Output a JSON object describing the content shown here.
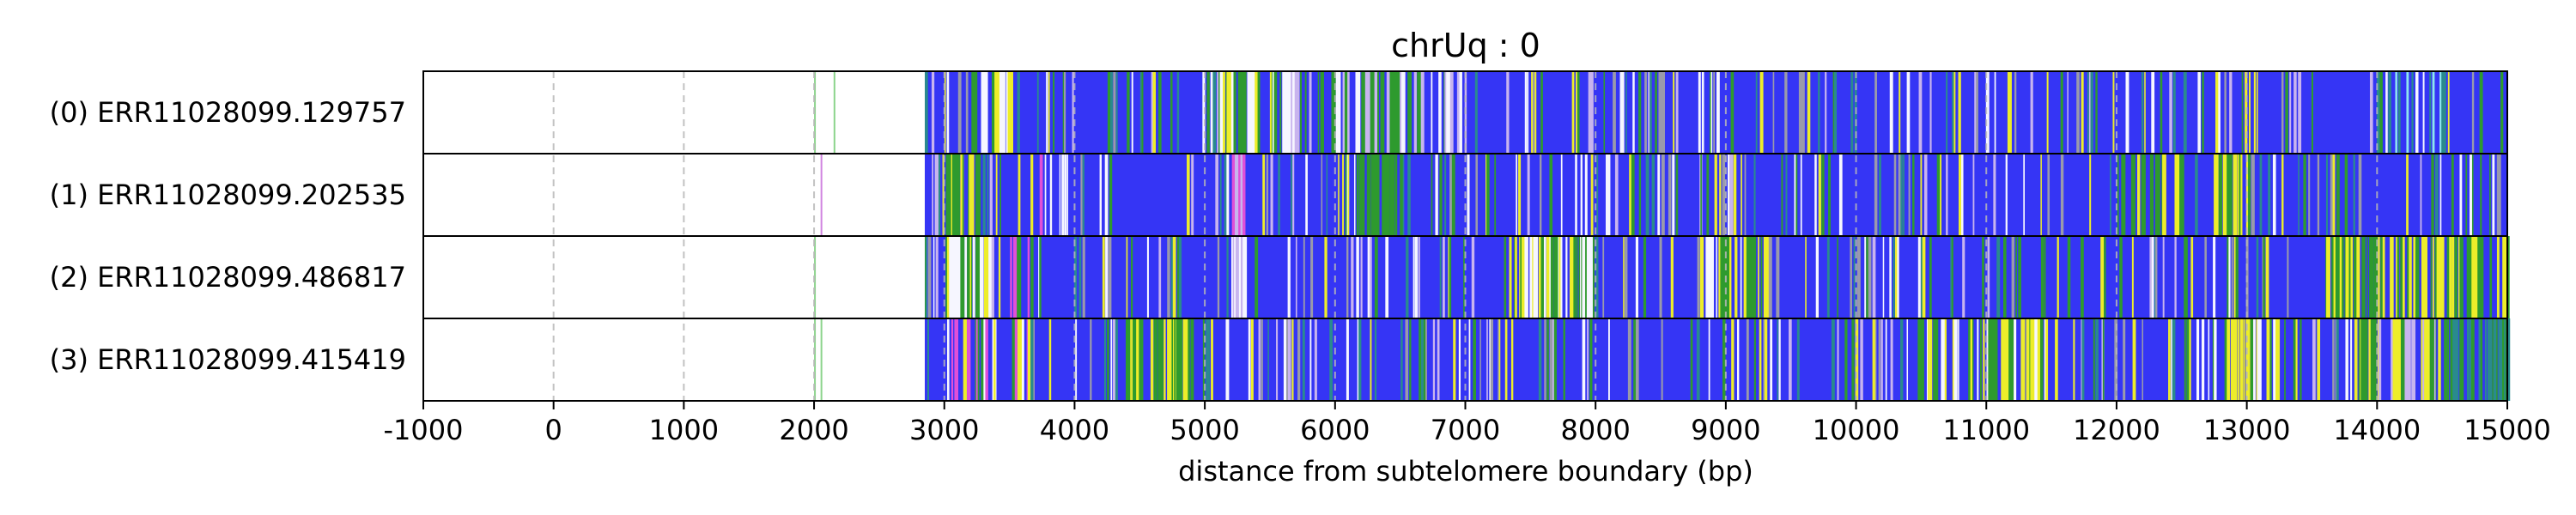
{
  "chart_data": {
    "type": "heatmap",
    "title": "chrUq : 0",
    "xlabel": "distance from subtelomere boundary (bp)",
    "ylabel": "",
    "xlim": [
      -1000,
      15000
    ],
    "x_ticks": [
      "-1000",
      "0",
      "1000",
      "2000",
      "3000",
      "4000",
      "5000",
      "6000",
      "7000",
      "8000",
      "9000",
      "10000",
      "11000",
      "12000",
      "13000",
      "14000",
      "15000"
    ],
    "x_tick_values": [
      -1000,
      0,
      1000,
      2000,
      3000,
      4000,
      5000,
      6000,
      7000,
      8000,
      9000,
      10000,
      11000,
      12000,
      13000,
      14000,
      15000
    ],
    "grid": "vertical dashed lines at each 1000 bp tick",
    "colors": {
      "background": "#3535f5",
      "green": "#2e9a2e",
      "yellow": "#eded2a",
      "white": "#f6f6ff",
      "lavender": "#c8b4ee",
      "magenta": "#e050d8",
      "cyan": "#8ee6ee",
      "teal": "#2a8a8e",
      "gray": "#9a9aaa",
      "light_green_line": "#7fcf7f",
      "violet_line": "#cc77dd"
    },
    "reads": [
      {
        "label": "(0) ERR11028099.129757",
        "start": 2850,
        "end": 15000,
        "outliers": [
          [
            2000,
            "light_green_line"
          ],
          [
            2150,
            "light_green_line"
          ]
        ],
        "bands": [
          {
            "from": 3200,
            "to": 3500,
            "density": 0.7,
            "palette": [
              "yellow",
              "green",
              "white"
            ]
          },
          {
            "from": 5100,
            "to": 5600,
            "density": 0.6,
            "palette": [
              "green",
              "white",
              "yellow"
            ]
          },
          {
            "from": 5600,
            "to": 7000,
            "density": 0.55,
            "palette": [
              "white",
              "lavender",
              "green"
            ]
          },
          {
            "from": 14100,
            "to": 14500,
            "density": 0.45,
            "palette": [
              "cyan",
              "white",
              "teal"
            ]
          }
        ]
      },
      {
        "label": "(1) ERR11028099.202535",
        "start": 2850,
        "end": 15000,
        "outliers": [
          [
            2050,
            "violet_line"
          ]
        ],
        "bands": [
          {
            "from": 3000,
            "to": 3250,
            "density": 0.8,
            "palette": [
              "yellow",
              "green"
            ]
          },
          {
            "from": 3700,
            "to": 4000,
            "density": 0.4,
            "palette": [
              "magenta",
              "green",
              "white"
            ]
          },
          {
            "from": 5200,
            "to": 5300,
            "density": 0.9,
            "palette": [
              "lavender",
              "magenta"
            ]
          },
          {
            "from": 6150,
            "to": 6500,
            "density": 0.7,
            "palette": [
              "green"
            ]
          },
          {
            "from": 12000,
            "to": 12500,
            "density": 0.55,
            "palette": [
              "green",
              "yellow"
            ]
          },
          {
            "from": 12700,
            "to": 13000,
            "density": 0.6,
            "palette": [
              "green",
              "yellow"
            ]
          },
          {
            "from": 14500,
            "to": 14900,
            "density": 0.4,
            "palette": [
              "green",
              "white"
            ]
          }
        ]
      },
      {
        "label": "(2) ERR11028099.486817",
        "start": 2850,
        "end": 15000,
        "outliers": [
          [
            2000,
            "light_green_line"
          ]
        ],
        "bands": [
          {
            "from": 3000,
            "to": 3350,
            "density": 0.85,
            "palette": [
              "yellow",
              "white",
              "green"
            ]
          },
          {
            "from": 3500,
            "to": 3700,
            "density": 0.5,
            "palette": [
              "magenta",
              "green"
            ]
          },
          {
            "from": 5200,
            "to": 5300,
            "density": 0.9,
            "palette": [
              "white",
              "lavender"
            ]
          },
          {
            "from": 7400,
            "to": 8000,
            "density": 0.75,
            "palette": [
              "green",
              "yellow",
              "white"
            ]
          },
          {
            "from": 8800,
            "to": 9300,
            "density": 0.75,
            "palette": [
              "yellow",
              "green",
              "white"
            ]
          },
          {
            "from": 13600,
            "to": 15000,
            "density": 0.7,
            "palette": [
              "green",
              "yellow"
            ]
          }
        ]
      },
      {
        "label": "(3) ERR11028099.415419",
        "start": 2850,
        "end": 15000,
        "outliers": [
          [
            2000,
            "light_green_line"
          ],
          [
            2050,
            "light_green_line"
          ]
        ],
        "bands": [
          {
            "from": 3000,
            "to": 3650,
            "density": 0.6,
            "palette": [
              "yellow",
              "white",
              "magenta",
              "green"
            ]
          },
          {
            "from": 4400,
            "to": 5000,
            "density": 0.65,
            "palette": [
              "green",
              "yellow"
            ]
          },
          {
            "from": 10500,
            "to": 11500,
            "density": 0.55,
            "palette": [
              "green",
              "yellow",
              "white"
            ]
          },
          {
            "from": 12500,
            "to": 13500,
            "density": 0.5,
            "palette": [
              "green",
              "yellow",
              "white"
            ]
          },
          {
            "from": 13800,
            "to": 14500,
            "density": 0.7,
            "palette": [
              "yellow",
              "green",
              "lavender"
            ]
          },
          {
            "from": 14500,
            "to": 15000,
            "density": 0.7,
            "palette": [
              "teal",
              "green"
            ]
          }
        ]
      }
    ],
    "sparse_noise": {
      "density": 0.22,
      "palette": [
        "green",
        "white",
        "lavender",
        "teal",
        "gray",
        "yellow"
      ]
    }
  }
}
